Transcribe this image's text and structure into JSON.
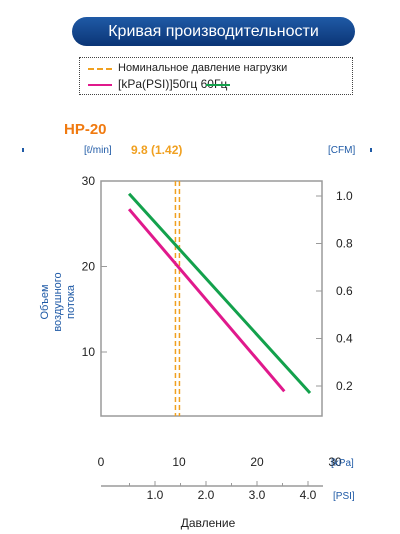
{
  "title": "Кривая производительности",
  "legend": {
    "rated_pressure": "Номинальное давление нагрузки",
    "series_label": "[kPa(PSI)]50гц 60Гц"
  },
  "colors": {
    "banner": "#1a4f99",
    "blue_text": "#1f5aa6",
    "orange": "#f0a020",
    "model": "#f07a10",
    "magenta": "#e0198c",
    "green": "#13a14c",
    "axis": "#9a9a9a"
  },
  "chart_data": {
    "type": "line",
    "model": "HP-20",
    "rated_value_label": "9.8 (1.42)",
    "rated_pressure_kpa": 9.8,
    "ylabel": "Объем воздушного потока",
    "ylabel_lines": [
      "Объем",
      "воздушного",
      "потока"
    ],
    "ylabel_unit": "[ℓ/min]",
    "y2label_unit": "[CFM]",
    "xlabel": "Давление",
    "x_kpa_unit": "[kPa]",
    "x_psi_unit": "[PSI]",
    "xlim_kpa": [
      0,
      30
    ],
    "ylim": [
      3,
      30
    ],
    "x_ticks_kpa": [
      "0",
      "10",
      "20",
      "30"
    ],
    "x_ticks_psi": [
      "1.0",
      "2.0",
      "3.0",
      "4.0"
    ],
    "x_ticks_psi_values": [
      1.0,
      2.0,
      3.0,
      4.0
    ],
    "y_ticks": [
      "30",
      "20",
      "10"
    ],
    "y_tick_values": [
      30,
      20,
      10
    ],
    "y2_ticks": [
      "1.0",
      "0.8",
      "0.6",
      "0.4",
      "0.2"
    ],
    "y2_tick_values": [
      1.0,
      0.8,
      0.6,
      0.4,
      0.2
    ],
    "series": [
      {
        "name": "50гц",
        "color": "#e0198c",
        "x": [
          3.6,
          23.5
        ],
        "y": [
          26.7,
          5.4
        ]
      },
      {
        "name": "60Гц",
        "color": "#13a14c",
        "x": [
          3.6,
          26.8
        ],
        "y": [
          28.5,
          5.2
        ]
      }
    ]
  }
}
